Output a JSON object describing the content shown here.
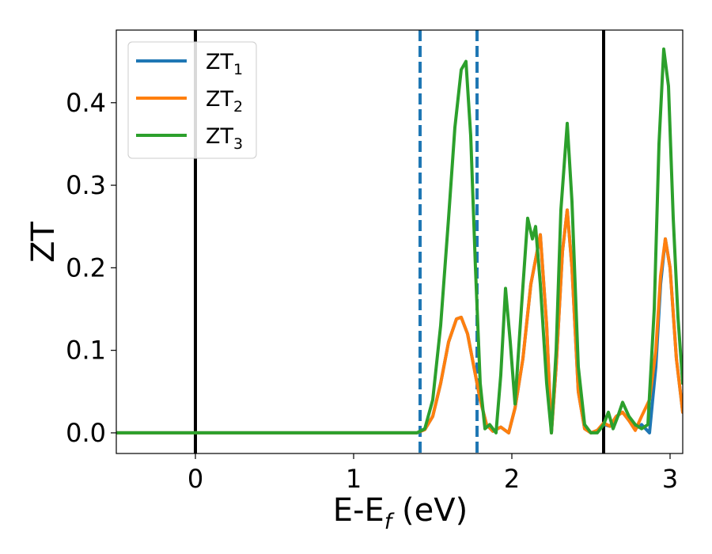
{
  "chart_data": {
    "type": "line",
    "title": "",
    "xlabel": "E-E",
    "xlabel_sub": "f",
    "xlabel_unit": " (eV)",
    "ylabel": "ZT",
    "xlim": [
      -0.5,
      3.08
    ],
    "ylim": [
      -0.025,
      0.488
    ],
    "xticks": [
      0,
      1,
      2,
      3
    ],
    "xtick_labels": [
      "0",
      "1",
      "2",
      "3"
    ],
    "yticks": [
      0.0,
      0.1,
      0.2,
      0.3,
      0.4
    ],
    "ytick_labels": [
      "0.0",
      "0.1",
      "0.2",
      "0.3",
      "0.4"
    ],
    "grid": false,
    "legend_position": "top-left",
    "vertical_lines": [
      {
        "x": 0.0,
        "style": "solid",
        "color": "#000000"
      },
      {
        "x": 1.42,
        "style": "dashed",
        "color": "#1f77b4"
      },
      {
        "x": 1.78,
        "style": "dashed",
        "color": "#1f77b4"
      },
      {
        "x": 2.58,
        "style": "solid",
        "color": "#000000"
      }
    ],
    "series": [
      {
        "name": "ZT",
        "name_sub": "1",
        "color": "#1f77b4",
        "x": [
          -0.5,
          1.4,
          1.45,
          1.5,
          1.55,
          1.6,
          1.65,
          1.68,
          1.72,
          1.76,
          1.8,
          1.84,
          1.88,
          1.93,
          1.98,
          2.02,
          2.07,
          2.12,
          2.18,
          2.22,
          2.25,
          2.28,
          2.32,
          2.35,
          2.38,
          2.42,
          2.46,
          2.5,
          2.54,
          2.58,
          2.62,
          2.66,
          2.7,
          2.74,
          2.78,
          2.82,
          2.87,
          2.91,
          2.94,
          2.97,
          3.0,
          3.04,
          3.08
        ],
        "y": [
          0.0,
          0.0,
          0.004,
          0.02,
          0.06,
          0.11,
          0.138,
          0.14,
          0.12,
          0.08,
          0.04,
          0.01,
          0.002,
          0.007,
          0.0,
          0.03,
          0.09,
          0.18,
          0.24,
          0.13,
          0.0,
          0.08,
          0.22,
          0.27,
          0.2,
          0.05,
          0.005,
          0.0,
          0.003,
          0.01,
          0.008,
          0.02,
          0.025,
          0.015,
          0.005,
          0.01,
          0.0,
          0.08,
          0.18,
          0.235,
          0.2,
          0.09,
          0.025
        ]
      },
      {
        "name": "ZT",
        "name_sub": "2",
        "color": "#ff7f0e",
        "x": [
          -0.5,
          1.4,
          1.45,
          1.5,
          1.55,
          1.6,
          1.65,
          1.68,
          1.72,
          1.76,
          1.8,
          1.84,
          1.88,
          1.93,
          1.98,
          2.02,
          2.07,
          2.12,
          2.18,
          2.22,
          2.25,
          2.28,
          2.32,
          2.35,
          2.38,
          2.42,
          2.46,
          2.5,
          2.54,
          2.58,
          2.62,
          2.66,
          2.7,
          2.74,
          2.78,
          2.82,
          2.87,
          2.91,
          2.94,
          2.97,
          3.0,
          3.04,
          3.08
        ],
        "y": [
          0.0,
          0.0,
          0.004,
          0.02,
          0.06,
          0.11,
          0.138,
          0.14,
          0.12,
          0.08,
          0.04,
          0.01,
          0.002,
          0.007,
          0.0,
          0.03,
          0.09,
          0.18,
          0.24,
          0.13,
          0.0,
          0.08,
          0.22,
          0.27,
          0.2,
          0.05,
          0.005,
          0.0,
          0.003,
          0.012,
          0.008,
          0.02,
          0.025,
          0.015,
          0.003,
          0.02,
          0.04,
          0.1,
          0.19,
          0.235,
          0.2,
          0.09,
          0.025
        ]
      },
      {
        "name": "ZT",
        "name_sub": "3",
        "color": "#2ca02c",
        "x": [
          -0.5,
          1.4,
          1.45,
          1.5,
          1.55,
          1.6,
          1.64,
          1.68,
          1.71,
          1.74,
          1.77,
          1.8,
          1.83,
          1.86,
          1.9,
          1.93,
          1.96,
          1.99,
          2.02,
          2.06,
          2.1,
          2.13,
          2.15,
          2.18,
          2.22,
          2.25,
          2.28,
          2.31,
          2.35,
          2.38,
          2.42,
          2.46,
          2.5,
          2.54,
          2.58,
          2.61,
          2.64,
          2.67,
          2.7,
          2.74,
          2.78,
          2.82,
          2.86,
          2.9,
          2.93,
          2.96,
          2.99,
          3.02,
          3.05,
          3.08
        ],
        "y": [
          0.0,
          0.0,
          0.005,
          0.04,
          0.13,
          0.26,
          0.37,
          0.44,
          0.45,
          0.36,
          0.2,
          0.06,
          0.005,
          0.01,
          0.0,
          0.07,
          0.175,
          0.11,
          0.035,
          0.15,
          0.26,
          0.235,
          0.25,
          0.18,
          0.06,
          0.0,
          0.1,
          0.27,
          0.375,
          0.28,
          0.08,
          0.01,
          0.0,
          0.0,
          0.01,
          0.025,
          0.005,
          0.02,
          0.037,
          0.02,
          0.01,
          0.005,
          0.01,
          0.15,
          0.35,
          0.465,
          0.42,
          0.26,
          0.14,
          0.06
        ]
      }
    ]
  }
}
